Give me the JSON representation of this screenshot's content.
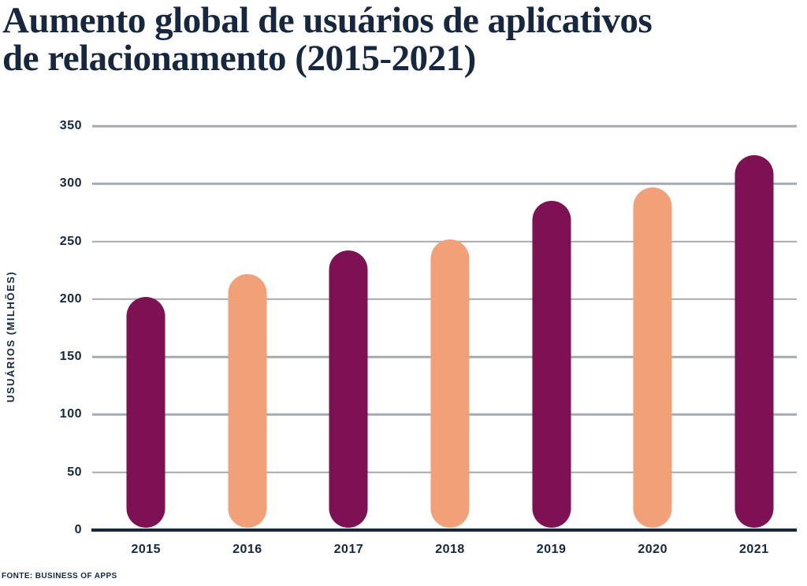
{
  "title_lines": [
    "Aumento global de usuários de aplicativos",
    "de relacionamento (2015-2021)"
  ],
  "source_note": "FONTE: BUSINESS OF APPS",
  "chart_data": {
    "type": "bar",
    "title": "Aumento global de usuários de aplicativos de relacionamento (2015-2021)",
    "xlabel": "",
    "ylabel": "USUÁRIOS (MILHÕES)",
    "categories": [
      "2015",
      "2016",
      "2017",
      "2018",
      "2019",
      "2020",
      "2021"
    ],
    "values": [
      200,
      220,
      240,
      250,
      283,
      295,
      323
    ],
    "bar_colors": [
      "#7d1154",
      "#f1a077",
      "#7d1154",
      "#f1a077",
      "#7d1154",
      "#f1a077",
      "#7d1154"
    ],
    "ylim": [
      0,
      350
    ],
    "yticks": [
      0,
      50,
      100,
      150,
      200,
      250,
      300,
      350
    ],
    "grid": "horizontal-only",
    "legend": "none",
    "source": "FONTE: BUSINESS OF APPS",
    "colors": {
      "bar_primary": "#7d1154",
      "bar_secondary": "#f1a077",
      "text": "#16273e",
      "gridline": "#a6a9ae",
      "axis_line": "#14293f",
      "background": "#ffffff"
    }
  }
}
